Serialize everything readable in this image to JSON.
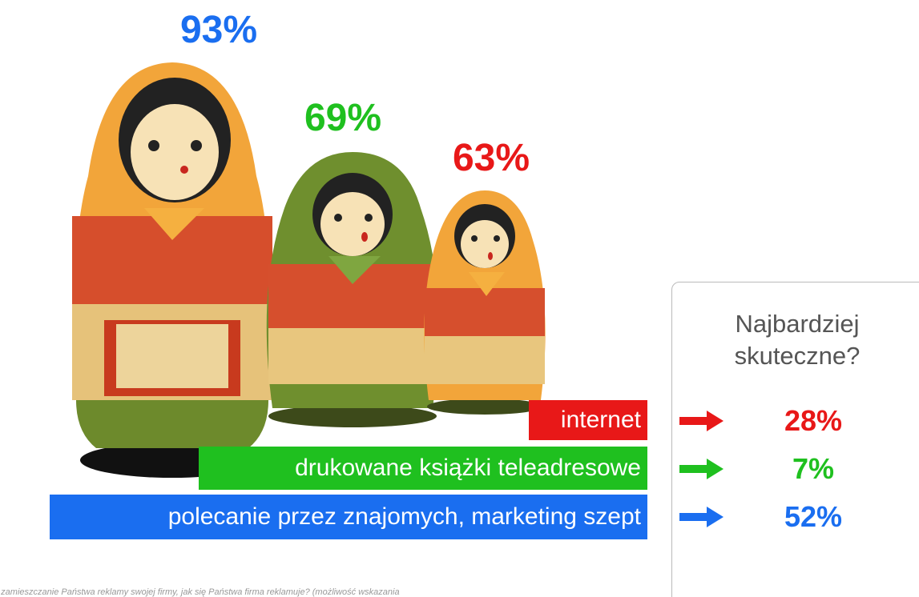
{
  "dolls": [
    {
      "percent": "93%"
    },
    {
      "percent": "69%"
    },
    {
      "percent": "63%"
    }
  ],
  "channels": [
    {
      "label": "internet",
      "effective": "28%"
    },
    {
      "label": "drukowane książki teleadresowe",
      "effective": "7%"
    },
    {
      "label": "polecanie przez znajomych, marketing szept",
      "effective": "52%"
    }
  ],
  "box": {
    "title": "Najbardziej skuteczne?"
  },
  "footnote": "e zamieszczanie Państwa reklamy swojej firmy, jak się Państwa firma reklamuje? (możliwość wskazania"
}
